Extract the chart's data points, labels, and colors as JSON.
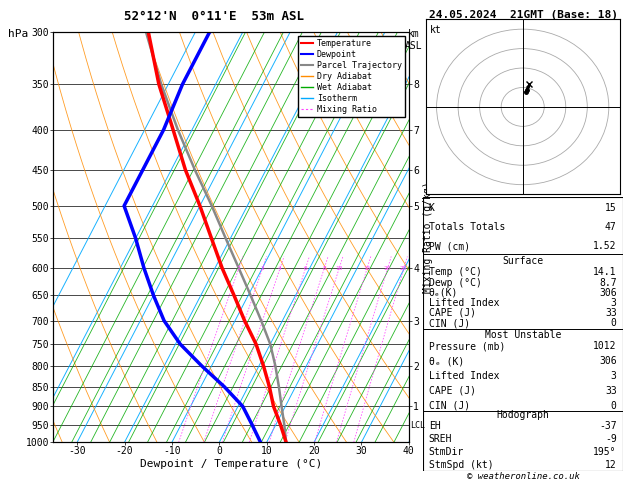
{
  "title_left": "52°12'N  0°11'E  53m ASL",
  "title_right": "24.05.2024  21GMT (Base: 18)",
  "xlabel": "Dewpoint / Temperature (°C)",
  "temp_data": {
    "pressure": [
      1000,
      950,
      900,
      850,
      800,
      750,
      700,
      650,
      600,
      550,
      500,
      450,
      400,
      350,
      300
    ],
    "temperature": [
      14.1,
      11.0,
      7.5,
      4.5,
      1.0,
      -3.0,
      -8.0,
      -13.0,
      -18.5,
      -24.0,
      -30.0,
      -37.0,
      -44.0,
      -52.0,
      -60.0
    ]
  },
  "dewp_data": {
    "pressure": [
      1000,
      950,
      900,
      850,
      800,
      750,
      700,
      650,
      600,
      550,
      500,
      450,
      400,
      350,
      300
    ],
    "dewpoint": [
      8.7,
      5.0,
      1.0,
      -5.0,
      -12.0,
      -19.0,
      -25.0,
      -30.0,
      -35.0,
      -40.0,
      -46.0,
      -46.0,
      -46.0,
      -47.0,
      -47.0
    ]
  },
  "parcel_data": {
    "pressure": [
      1000,
      950,
      900,
      850,
      800,
      750,
      700,
      650,
      600,
      550,
      500,
      450,
      400,
      350,
      300
    ],
    "temperature": [
      14.1,
      11.8,
      9.2,
      6.5,
      3.5,
      0.0,
      -4.5,
      -9.5,
      -15.0,
      -21.0,
      -27.5,
      -35.0,
      -43.0,
      -51.5,
      -60.5
    ]
  },
  "temp_color": "#ff0000",
  "dewp_color": "#0000ff",
  "parcel_color": "#888888",
  "dry_adiabat_color": "#ff8c00",
  "wet_adiabat_color": "#00aa00",
  "isotherm_color": "#00aaff",
  "mixing_ratio_color": "#ff44ff",
  "xlim": [
    -35,
    40
  ],
  "pressure_levels": [
    300,
    350,
    400,
    450,
    500,
    550,
    600,
    650,
    700,
    750,
    800,
    850,
    900,
    950,
    1000
  ],
  "x_ticks": [
    -30,
    -20,
    -10,
    0,
    10,
    20,
    30,
    40
  ],
  "km_ticks_pressures": [
    900,
    800,
    700,
    600,
    500,
    450,
    400,
    350
  ],
  "km_ticks_values": [
    1,
    2,
    3,
    4,
    5,
    6,
    7,
    8
  ],
  "lcl_pressure": 952,
  "mixing_ratio_lines": [
    2,
    3,
    4,
    6,
    8,
    10,
    15,
    20,
    25
  ],
  "stats": {
    "K": 15,
    "Totals_Totals": 47,
    "PW_cm": 1.52,
    "Surface_Temp": 14.1,
    "Surface_Dewp": 8.7,
    "Surface_theta_e": 306,
    "Surface_Lifted_Index": 3,
    "Surface_CAPE": 33,
    "Surface_CIN": 0,
    "MU_Pressure": 1012,
    "MU_theta_e": 306,
    "MU_Lifted_Index": 3,
    "MU_CAPE": 33,
    "MU_CIN": 0,
    "EH": -37,
    "SREH": -9,
    "StmDir": 195,
    "StmSpd": 12
  },
  "copyright": "© weatheronline.co.uk"
}
